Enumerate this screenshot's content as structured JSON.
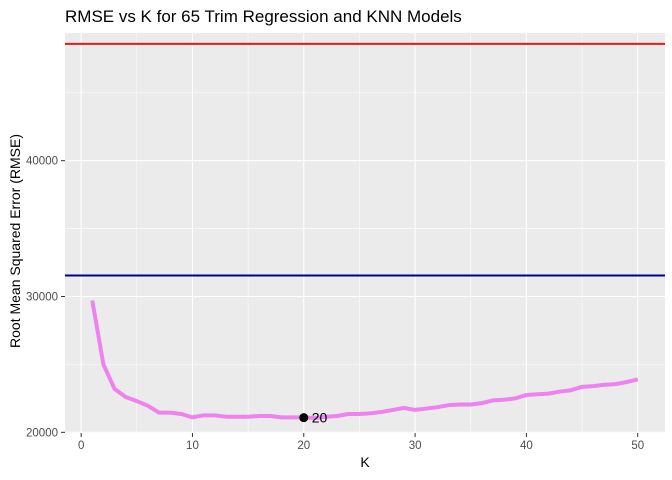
{
  "chart_data": {
    "type": "line",
    "title": "RMSE vs K for 65 Trim Regression and KNN Models",
    "xlabel": "K",
    "ylabel": "Root Mean Squared Error (RMSE)",
    "xlim": [
      -1.45,
      52.45
    ],
    "ylim": [
      19950,
      49400
    ],
    "x_ticks": [
      0,
      10,
      20,
      30,
      40,
      50
    ],
    "y_ticks": [
      20000,
      30000,
      40000
    ],
    "grid": true,
    "legend": "none",
    "series": [
      {
        "color": "#EE82EE",
        "x": [
          1,
          2,
          3,
          4,
          5,
          6,
          7,
          8,
          9,
          10,
          11,
          12,
          13,
          14,
          15,
          16,
          17,
          18,
          19,
          20,
          21,
          22,
          23,
          24,
          25,
          26,
          27,
          28,
          29,
          30,
          31,
          32,
          33,
          34,
          35,
          36,
          37,
          38,
          39,
          40,
          41,
          42,
          43,
          44,
          45,
          46,
          47,
          48,
          49,
          50
        ],
        "y": [
          29700,
          25000,
          23200,
          22600,
          22300,
          21950,
          21450,
          21450,
          21350,
          21100,
          21250,
          21250,
          21150,
          21150,
          21150,
          21200,
          21200,
          21100,
          21100,
          21100,
          21050,
          21150,
          21200,
          21350,
          21350,
          21400,
          21500,
          21650,
          21800,
          21650,
          21750,
          21850,
          22000,
          22050,
          22050,
          22150,
          22350,
          22400,
          22500,
          22750,
          22800,
          22850,
          23000,
          23100,
          23350,
          23400,
          23500,
          23550,
          23700,
          23900
        ]
      }
    ],
    "hlines": [
      {
        "y": 48600,
        "color": "#E31A1C"
      },
      {
        "y": 31550,
        "color": "#00008B"
      }
    ],
    "highlight": {
      "x": 20,
      "y": 21080,
      "label": "20"
    }
  }
}
